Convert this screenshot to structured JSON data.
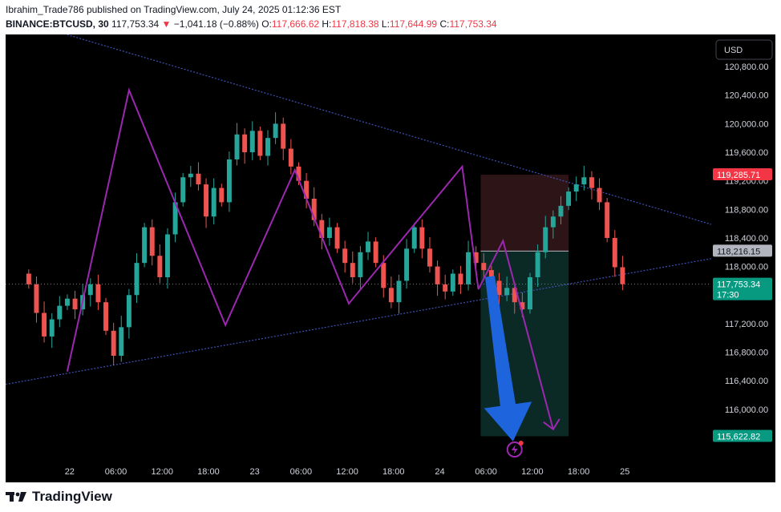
{
  "header": {
    "line1": "Ibrahim_Trade786 published on TradingView.com, July 24, 2025 01:12:36 EST",
    "symbol": "BINANCE:BTCUSD, 30",
    "last": "117,753.34",
    "arrow": "▼",
    "change": "−1,041.18 (−0.88%)",
    "o_label": "O:",
    "o_value": "117,666.62",
    "h_label": "H:",
    "h_value": "117,818.38",
    "l_label": "L:",
    "l_value": "117,644.99",
    "c_label": "C:",
    "c_value": "117,753.34"
  },
  "footer": {
    "brand": "TradingView"
  },
  "colors": {
    "up": "#26a69a",
    "down": "#ef5350",
    "pattern": "#9c27b0",
    "trendline": "#3f51b5",
    "arrow": "#1e64dc",
    "stop_zone": "#2d1416",
    "target_zone": "#0c2a25"
  },
  "chart_data": {
    "type": "candlestick",
    "symbol": "BINANCE:BTCUSD",
    "interval": "30",
    "currency": "USD",
    "ylim": [
      115280,
      121250
    ],
    "yticks": [
      "116,000.00",
      "116,400.00",
      "116,800.00",
      "117,200.00",
      "118,000.00",
      "118,400.00",
      "118,800.00",
      "119,200.00",
      "119,600.00",
      "120,000.00",
      "120,400.00",
      "120,800.00"
    ],
    "xticks": [
      {
        "t": -0.7,
        "label": "22"
      },
      {
        "t": 5.3,
        "label": "06:00"
      },
      {
        "t": 11.3,
        "label": "12:00"
      },
      {
        "t": 17.3,
        "label": "18:00"
      },
      {
        "t": 23.3,
        "label": "23"
      },
      {
        "t": 29.3,
        "label": "06:00"
      },
      {
        "t": 35.3,
        "label": "12:00"
      },
      {
        "t": 41.3,
        "label": "18:00"
      },
      {
        "t": 47.3,
        "label": "24"
      },
      {
        "t": 53.3,
        "label": "06:00"
      },
      {
        "t": 59.3,
        "label": "12:00"
      },
      {
        "t": 65.3,
        "label": "18:00"
      },
      {
        "t": 71.3,
        "label": "25"
      }
    ],
    "time_unit": "hours since 22 Jul 00:00 (approx.)",
    "candles": [
      {
        "t": -6.0,
        "c": 117750
      },
      {
        "t": -5.0,
        "c": 117350
      },
      {
        "t": -4.0,
        "c": 117020
      },
      {
        "t": -3.0,
        "c": 117260
      },
      {
        "t": -2.0,
        "c": 117450
      },
      {
        "t": -1.0,
        "c": 117550
      },
      {
        "t": 0.0,
        "c": 117400
      },
      {
        "t": 1.0,
        "c": 117600
      },
      {
        "t": 2.0,
        "c": 117750
      },
      {
        "t": 3.0,
        "c": 117500
      },
      {
        "t": 4.0,
        "c": 117100
      },
      {
        "t": 5.0,
        "c": 116750
      },
      {
        "t": 6.0,
        "c": 117150
      },
      {
        "t": 7.0,
        "c": 117600
      },
      {
        "t": 8.0,
        "c": 118050
      },
      {
        "t": 9.0,
        "c": 118550
      },
      {
        "t": 10.0,
        "c": 118150
      },
      {
        "t": 11.0,
        "c": 117850
      },
      {
        "t": 12.0,
        "c": 118450
      },
      {
        "t": 13.0,
        "c": 118900
      },
      {
        "t": 14.0,
        "c": 119250
      },
      {
        "t": 15.0,
        "c": 119300
      },
      {
        "t": 16.0,
        "c": 119150
      },
      {
        "t": 17.0,
        "c": 118700
      },
      {
        "t": 18.0,
        "c": 119100
      },
      {
        "t": 19.0,
        "c": 118900
      },
      {
        "t": 20.0,
        "c": 119500
      },
      {
        "t": 21.0,
        "c": 119850
      },
      {
        "t": 22.0,
        "c": 119600
      },
      {
        "t": 23.0,
        "c": 119900
      },
      {
        "t": 24.0,
        "c": 119550
      },
      {
        "t": 25.0,
        "c": 119800
      },
      {
        "t": 26.0,
        "c": 120000
      },
      {
        "t": 27.0,
        "c": 119650
      },
      {
        "t": 28.0,
        "c": 119400
      },
      {
        "t": 29.0,
        "c": 119200
      },
      {
        "t": 30.0,
        "c": 118950
      },
      {
        "t": 31.0,
        "c": 118650
      },
      {
        "t": 32.0,
        "c": 118400
      },
      {
        "t": 33.0,
        "c": 118550
      },
      {
        "t": 34.0,
        "c": 118250
      },
      {
        "t": 35.0,
        "c": 118050
      },
      {
        "t": 36.0,
        "c": 117850
      },
      {
        "t": 37.0,
        "c": 118200
      },
      {
        "t": 38.0,
        "c": 118350
      },
      {
        "t": 39.0,
        "c": 118050
      },
      {
        "t": 40.0,
        "c": 117700
      },
      {
        "t": 41.0,
        "c": 117500
      },
      {
        "t": 42.0,
        "c": 117800
      },
      {
        "t": 43.0,
        "c": 118250
      },
      {
        "t": 44.0,
        "c": 118550
      },
      {
        "t": 45.0,
        "c": 118250
      },
      {
        "t": 46.0,
        "c": 118000
      },
      {
        "t": 47.0,
        "c": 117750
      },
      {
        "t": 48.0,
        "c": 117650
      },
      {
        "t": 49.0,
        "c": 117900
      },
      {
        "t": 50.0,
        "c": 117750
      },
      {
        "t": 51.0,
        "c": 118200
      },
      {
        "t": 52.0,
        "c": 118050
      },
      {
        "t": 53.0,
        "c": 117950
      },
      {
        "t": 54.0,
        "c": 117800
      },
      {
        "t": 55.0,
        "c": 117600
      },
      {
        "t": 56.0,
        "c": 117700
      },
      {
        "t": 57.0,
        "c": 117500
      },
      {
        "t": 58.0,
        "c": 117400
      },
      {
        "t": 59.0,
        "c": 117850
      },
      {
        "t": 60.0,
        "c": 118200
      },
      {
        "t": 61.0,
        "c": 118550
      },
      {
        "t": 62.0,
        "c": 118700
      },
      {
        "t": 63.0,
        "c": 118850
      },
      {
        "t": 64.0,
        "c": 119050
      },
      {
        "t": 65.0,
        "c": 119150
      },
      {
        "t": 66.0,
        "c": 119250
      },
      {
        "t": 67.0,
        "c": 119100
      },
      {
        "t": 68.0,
        "c": 118900
      },
      {
        "t": 69.0,
        "c": 118400
      },
      {
        "t": 70.0,
        "c": 117990
      },
      {
        "t": 71.0,
        "c": 117753.34
      }
    ],
    "drawings": {
      "zigzag": [
        [
          -1,
          116530
        ],
        [
          7,
          120470
        ],
        [
          19.5,
          117180
        ],
        [
          28.5,
          119350
        ],
        [
          35.5,
          117480
        ],
        [
          50.2,
          119400
        ],
        [
          52.3,
          117680
        ]
      ],
      "projection": [
        [
          52.3,
          117680
        ],
        [
          55.5,
          118360
        ],
        [
          62,
          115720
        ]
      ],
      "upper_trendline": [
        [
          -9,
          121500
        ],
        [
          82.5,
          118590
        ]
      ],
      "lower_trendline": [
        [
          -9,
          116350
        ],
        [
          82.5,
          118110
        ]
      ],
      "position": {
        "t_start": 52.6,
        "t_end": 64.0,
        "stop": 119285.71,
        "entry": 118216.15,
        "target": 115622.82
      },
      "big_arrow": [
        [
          53.8,
          117860
        ],
        [
          56.8,
          115550
        ]
      ]
    },
    "price_labels": [
      {
        "value": 119285.71,
        "text": "119,285.71",
        "bg": "#f23645",
        "fg": "#ffffff"
      },
      {
        "value": 118216.15,
        "text": "118,216.15",
        "bg": "#b2b5be",
        "fg": "#131722"
      },
      {
        "value": 117753.34,
        "text": "117,753.34",
        "sub": "17:30",
        "bg": "#089981",
        "fg": "#ffffff"
      },
      {
        "value": 115622.82,
        "text": "115,622.82",
        "bg": "#089981",
        "fg": "#ffffff"
      }
    ],
    "currency_button": "USD"
  }
}
